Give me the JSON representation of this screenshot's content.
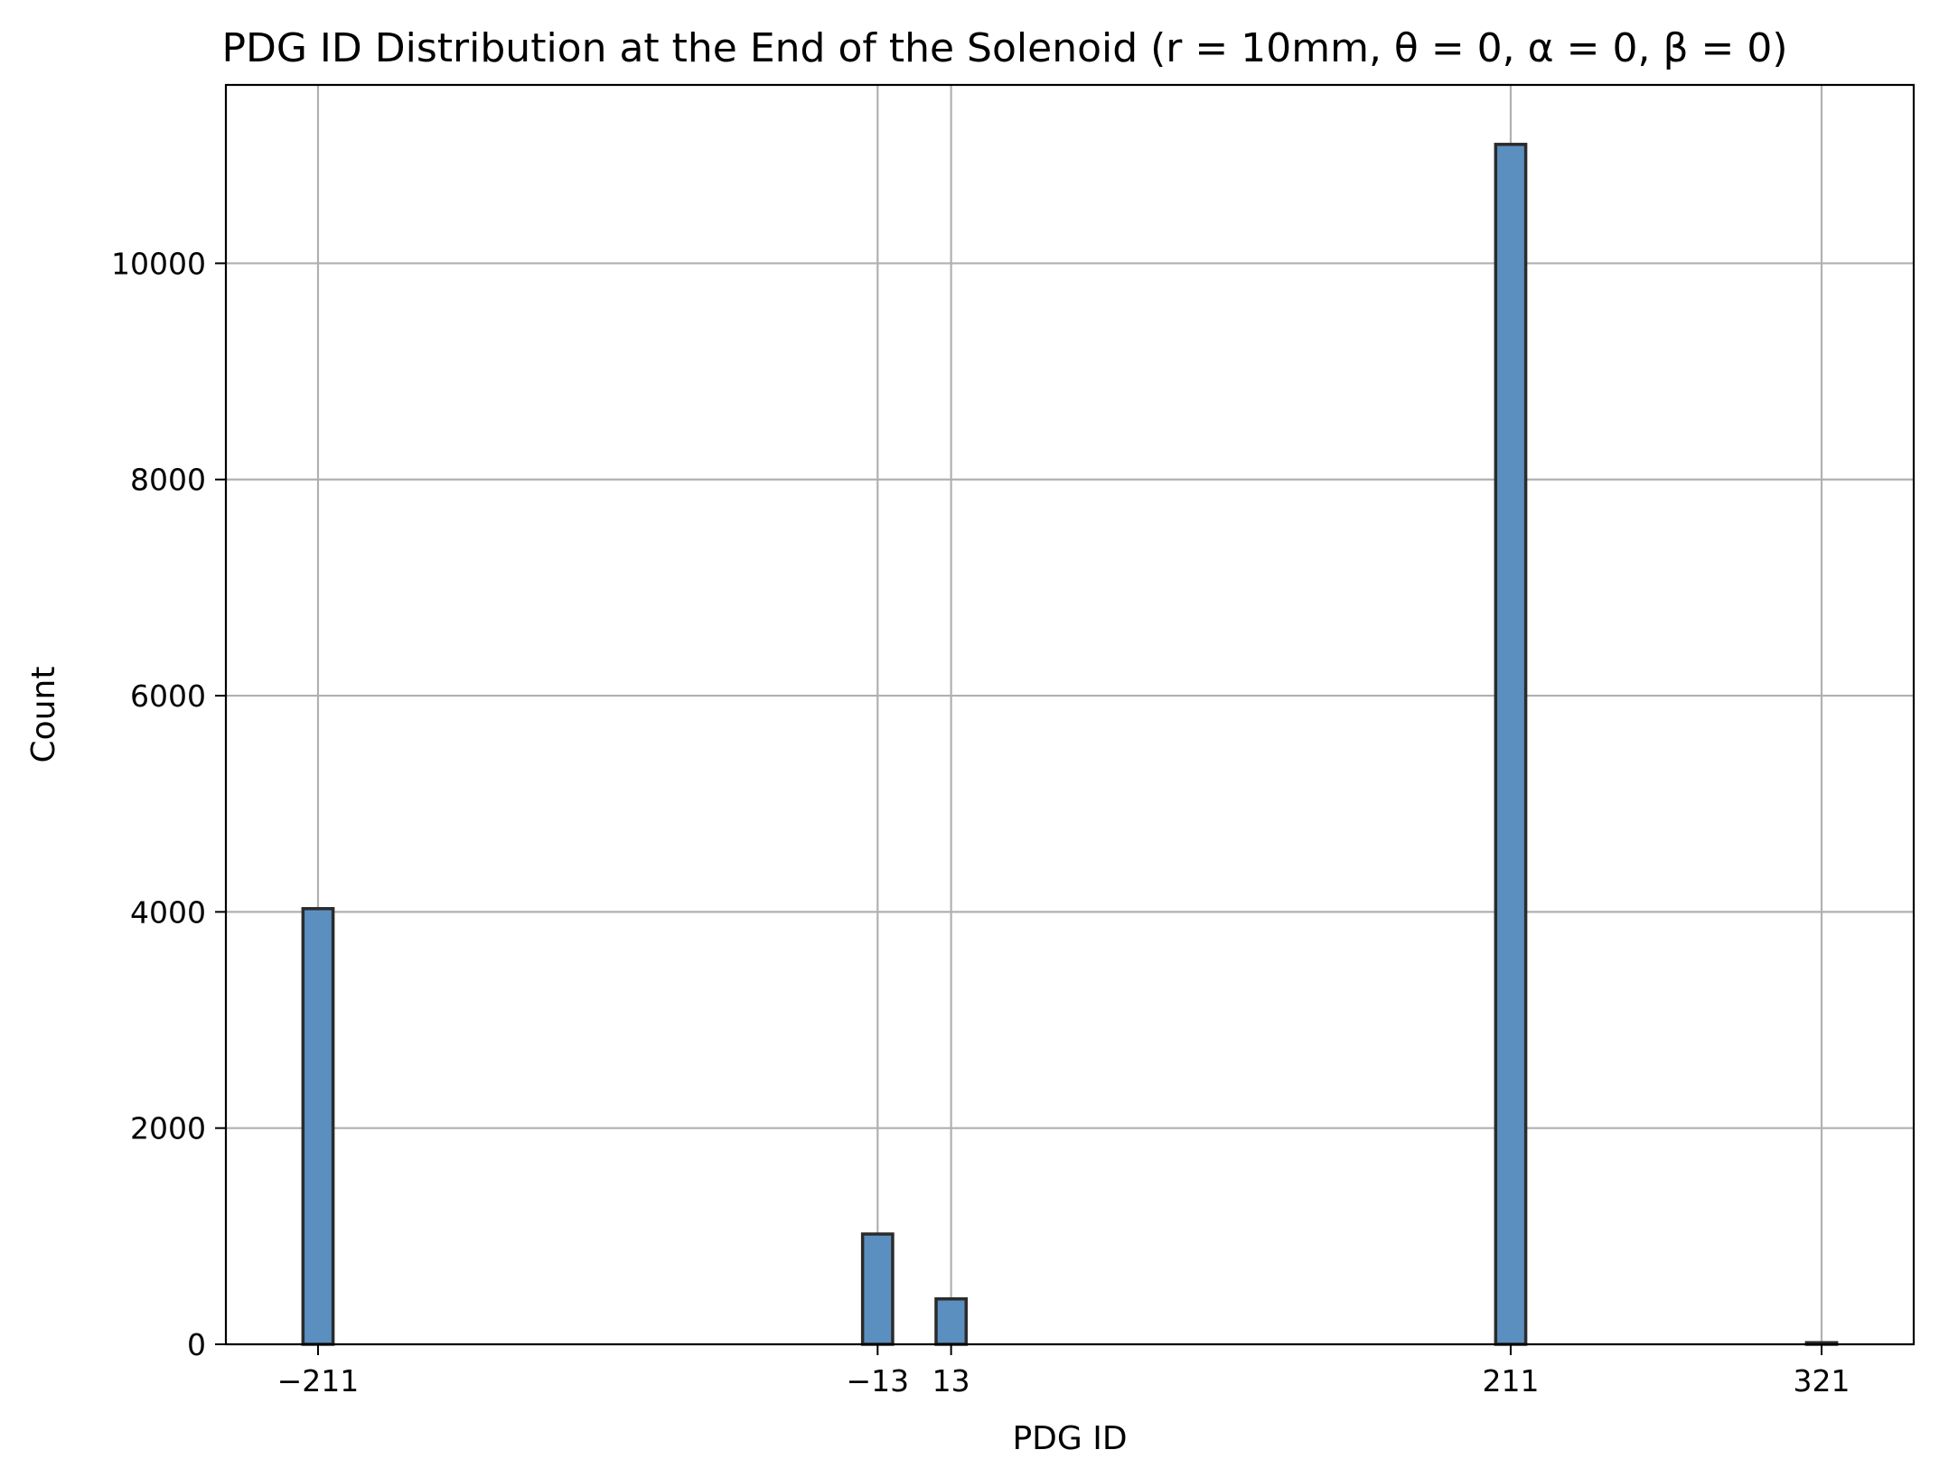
{
  "chart_data": {
    "type": "bar",
    "title": "PDG ID Distribution at the End of the Solenoid (r = 10mm, θ = 0, α = 0, β = 0)",
    "xlabel": "PDG ID",
    "ylabel": "Count",
    "x_ticks": [
      {
        "value": -211,
        "label": "−211"
      },
      {
        "value": -13,
        "label": "−13"
      },
      {
        "value": 13,
        "label": "13"
      },
      {
        "value": 211,
        "label": "211"
      },
      {
        "value": 321,
        "label": "321"
      }
    ],
    "y_ticks": [
      {
        "value": 0,
        "label": "0"
      },
      {
        "value": 2000,
        "label": "2000"
      },
      {
        "value": 4000,
        "label": "4000"
      },
      {
        "value": 6000,
        "label": "6000"
      },
      {
        "value": 8000,
        "label": "8000"
      },
      {
        "value": 10000,
        "label": "10000"
      }
    ],
    "bars": [
      {
        "category": -211,
        "value": 4030
      },
      {
        "category": -13,
        "value": 1020
      },
      {
        "category": 13,
        "value": 420
      },
      {
        "category": 211,
        "value": 11100
      },
      {
        "category": 321,
        "value": 15
      }
    ],
    "bin_width": 10.64,
    "xlim": [
      -243.6,
      353.6
    ],
    "ylim": [
      0,
      11650
    ],
    "grid": true,
    "colors": {
      "bar_fill": "#5b8fc0",
      "bar_edge": "#2b2b2b",
      "grid": "#b0b0b0"
    }
  }
}
